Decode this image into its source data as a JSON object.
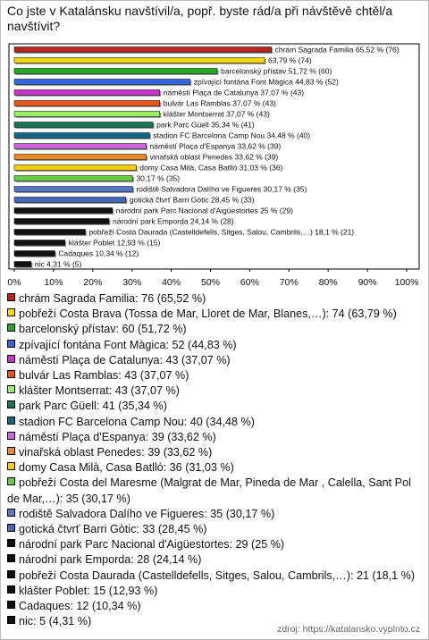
{
  "chart_data": {
    "type": "hbar",
    "title": "Co jste v Katalánsku navštívil/a, popř. byste rád/a při návštěvě chtěl/a navštívit?",
    "values": [
      65.52,
      63.79,
      51.72,
      44.83,
      37.07,
      37.07,
      37.07,
      35.34,
      34.48,
      33.62,
      33.62,
      31.03,
      30.17,
      30.17,
      28.45,
      25,
      24.14,
      18.1,
      12.93,
      10.34,
      4.31
    ],
    "value_labels": [
      "chrám Sagrada Familia 65,52 % (76)",
      "63,79 % (74)",
      "barcelonský přístav 51,72 % (60)",
      "zpívající fontána Font Màgica 44,83 % (52)",
      "náměstí Plaça de Catalunya 37,07 % (43)",
      "bulvár Las Ramblas 37,07 % (43)",
      "klášter Montserrat 37,07 % (43)",
      "park Parc Güell 35,34 % (41)",
      "stadion FC Barcelona Camp Nou 34,48 % (40)",
      "náměstí Plaça d'Espanya 33,62 % (39)",
      "vinařská oblast Penedes 33,62 % (39)",
      "domy Casa Milà, Casa Batlló 31,03 % (36)",
      "30,17 % (35)",
      "rodiště Salvadora Dalího ve Figueres 30,17 % (35)",
      "gotická čtvrť Barri Gòtic 28,45 % (33)",
      "národní park Parc Nacional d'Aigüestortes 25 % (29)",
      "národní park Emporda 24,14 % (28)",
      "pobřeží Costa Daurada (Castelldefells, Sitges, Salou, Cambrils,…) 18,1 % (21)",
      "klášter Poblet 12,93 % (15)",
      "Cadaques 10,34 % (12)",
      "nic 4,31 % (5)"
    ],
    "colors": [
      "#b3261e",
      "#ffd700",
      "#22aa22",
      "#3366dd",
      "#cc33cc",
      "#ee5511",
      "#99ee66",
      "#117755",
      "#116688",
      "#cc66dd",
      "#ee8822",
      "#ffcc00",
      "#66cc44",
      "#5577cc",
      "#4466bb",
      "#111111",
      "#111111",
      "#111111",
      "#111111",
      "#111111",
      "#111111"
    ],
    "legend_labels": [
      "chrám Sagrada Familia: 76 (65,52 %)",
      "pobřeží Costa Brava (Tossa de Mar, Lloret de Mar, Blanes,…): 74 (63,79 %)",
      "barcelonský přístav: 60 (51,72 %)",
      "zpívající fontána Font Màgica: 52 (44,83 %)",
      "náměstí Plaça de Catalunya: 43 (37,07 %)",
      "bulvár Las Ramblas: 43 (37,07 %)",
      "klášter Montserrat: 43 (37,07 %)",
      "park Parc Güell: 41 (35,34 %)",
      "stadion FC Barcelona Camp Nou: 40 (34,48 %)",
      "náměstí Plaça d'Espanya: 39 (33,62 %)",
      "vinařská oblast Penedes: 39 (33,62 %)",
      "domy Casa Milà, Casa Batlló: 36 (31,03 %)",
      "pobřeží Costa del Maresme (Malgrat de Mar, Pineda de Mar , Calella, Sant Pol de Mar,…): 35 (30,17 %)",
      "rodiště Salvadora Dalího ve Figueres: 35 (30,17 %)",
      "gotická čtvrť Barri Gòtic: 33 (28,45 %)",
      "národní park Parc Nacional d'Aigüestortes: 29 (25 %)",
      "národní park Emporda: 28 (24,14 %)",
      "pobřeží Costa Daurada (Castelldefells, Sitges, Salou, Cambrils,…): 21 (18,1 %)",
      "klášter Poblet: 15 (12,93 %)",
      "Cadaques: 12 (10,34 %)",
      "nic: 5 (4,31 %)"
    ],
    "xlim": [
      0,
      100
    ],
    "xticks": [
      {
        "value": 0,
        "label": "0%"
      },
      {
        "value": 10,
        "label": "10%"
      },
      {
        "value": 20,
        "label": "20%"
      },
      {
        "value": 30,
        "label": "30%"
      },
      {
        "value": 40,
        "label": "40%"
      },
      {
        "value": 50,
        "label": "50%"
      },
      {
        "value": 60,
        "label": "60%"
      },
      {
        "value": 70,
        "label": "70%"
      },
      {
        "value": 80,
        "label": "80%"
      },
      {
        "value": 90,
        "label": "90%"
      },
      {
        "value": 100,
        "label": "100%"
      }
    ],
    "source": "zdroj: https://katalansko.vyplnto.cz"
  }
}
